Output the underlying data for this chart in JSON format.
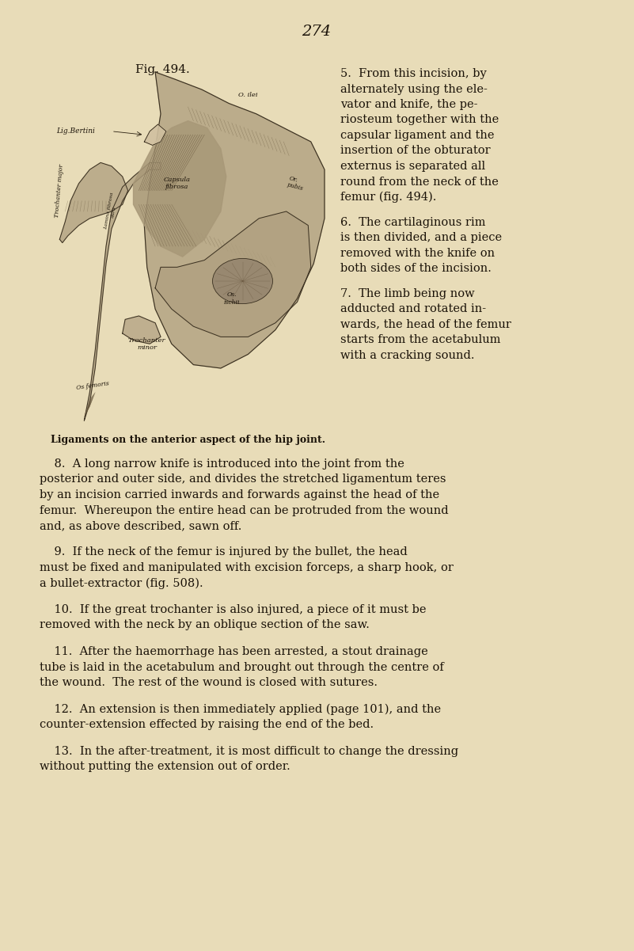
{
  "background_color": "#e8dcb8",
  "text_color": "#1a1208",
  "page_number": "274",
  "fig_caption": "Fig. 494.",
  "image_label": "Ligaments on the anterior aspect of the hip joint.",
  "right_col_lines_p5": [
    "5.  From this incision, by",
    "alternately using the ele-",
    "vator and knife, the pe-",
    "riosteum together with the",
    "capsular ligament and the",
    "insertion of the obturator",
    "externus is separated all",
    "round from the neck of the",
    "femur (fig. 494)."
  ],
  "right_col_lines_p6": [
    "6.  The cartilaginous rim",
    "is then divided, and a piece",
    "removed with the knife on",
    "both sides of the incision."
  ],
  "right_col_lines_p7": [
    "7.  The limb being now",
    "adducted and rotated in-",
    "wards, the head of the femur",
    "starts from the acetabulum",
    "with a cracking sound."
  ],
  "full_lines_p8": [
    "    8.  A long narrow knife is introduced into the joint from the",
    "posterior and outer side, and divides the stretched ligamentum teres",
    "by an incision carried inwards and forwards against the head of the",
    "femur.  Whereupon the entire head can be protruded from the wound",
    "and, as above described, sawn off."
  ],
  "full_lines_p9": [
    "    9.  If the neck of the femur is injured by the bullet, the head",
    "must be fixed and manipulated with excision forceps, a sharp hook, or",
    "a bullet-extractor (fig. 508)."
  ],
  "full_lines_p10": [
    "    10.  If the great trochanter is also injured, a piece of it must be",
    "removed with the neck by an oblique section of the saw."
  ],
  "full_lines_p11": [
    "    11.  After the haemorrhage has been arrested, a stout drainage",
    "tube is laid in the acetabulum and brought out through the centre of",
    "the wound.  The rest of the wound is closed with sutures."
  ],
  "full_lines_p12": [
    "    12.  An extension is then immediately applied (page 101), and the",
    "counter-extension effected by raising the end of the bed."
  ],
  "full_lines_p13": [
    "    13.  In the after-treatment, it is most difficult to change the dressing",
    "without putting the extension out of order."
  ]
}
